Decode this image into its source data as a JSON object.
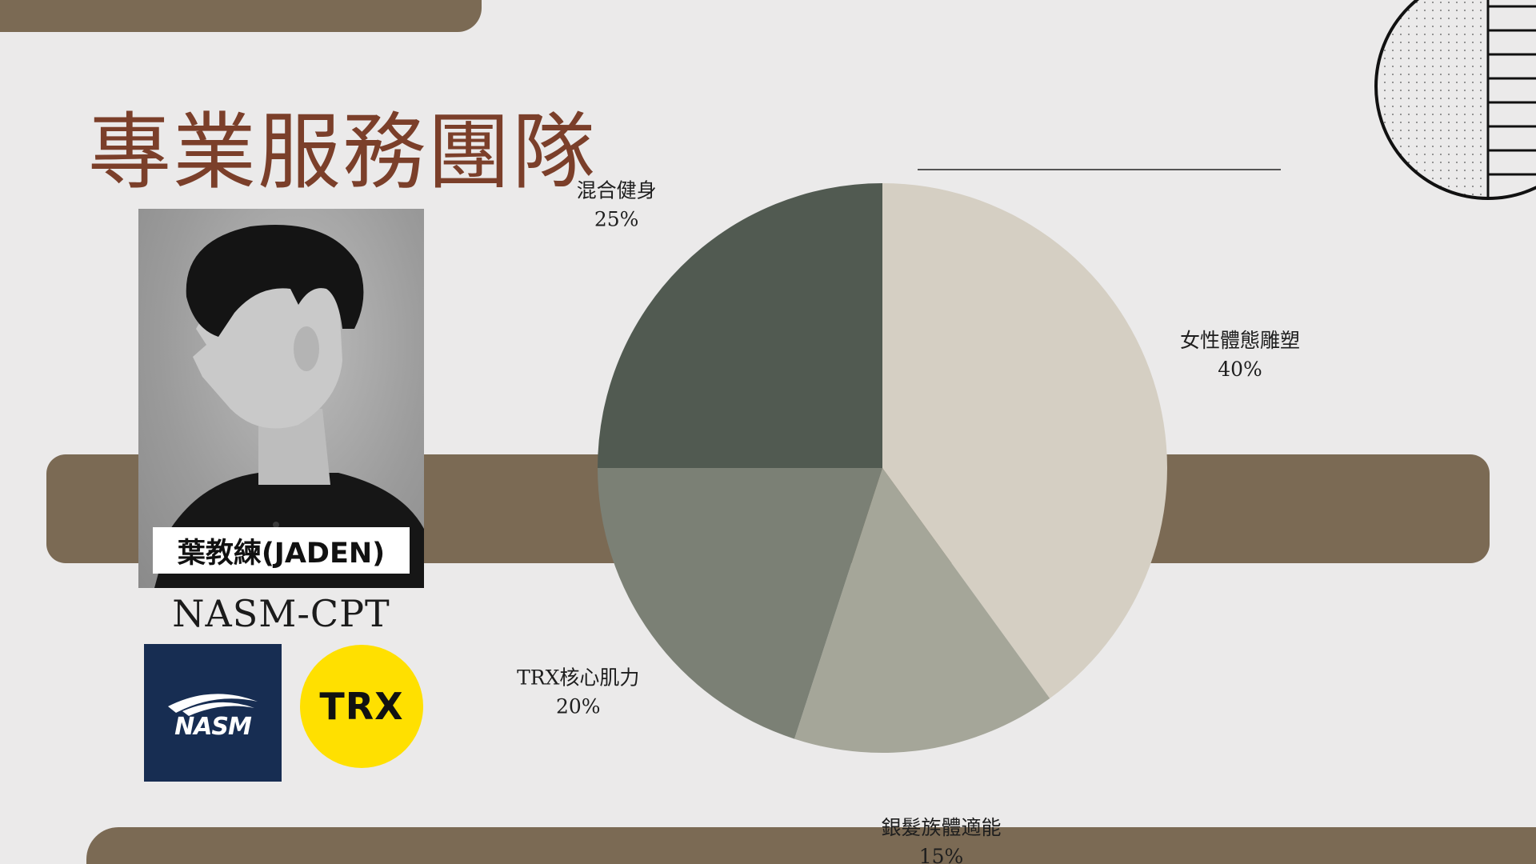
{
  "title": "專業服務團隊",
  "coach": {
    "name": "葉教練(JADEN)",
    "certification": "NASM-CPT"
  },
  "logos": {
    "nasm": "NASM",
    "trx": "TRX"
  },
  "colors": {
    "background": "#ebeaea",
    "band": "#7b6a54",
    "title": "#7b3f2a",
    "nasm_bg": "#172d52",
    "trx_bg": "#ffe000"
  },
  "chart_data": {
    "type": "pie",
    "title": "",
    "start": "12 o'clock",
    "direction": "clockwise",
    "slices": [
      {
        "label": "女性體態雕塑",
        "value": 40,
        "display": "40%",
        "color": "#d5cfc3"
      },
      {
        "label": "銀髮族體適能",
        "value": 15,
        "display": "15%",
        "color": "#a5a699"
      },
      {
        "label": "TRX核心肌力",
        "value": 20,
        "display": "20%",
        "color": "#7b8075"
      },
      {
        "label": "混合健身",
        "value": 25,
        "display": "25%",
        "color": "#515a51"
      }
    ]
  }
}
